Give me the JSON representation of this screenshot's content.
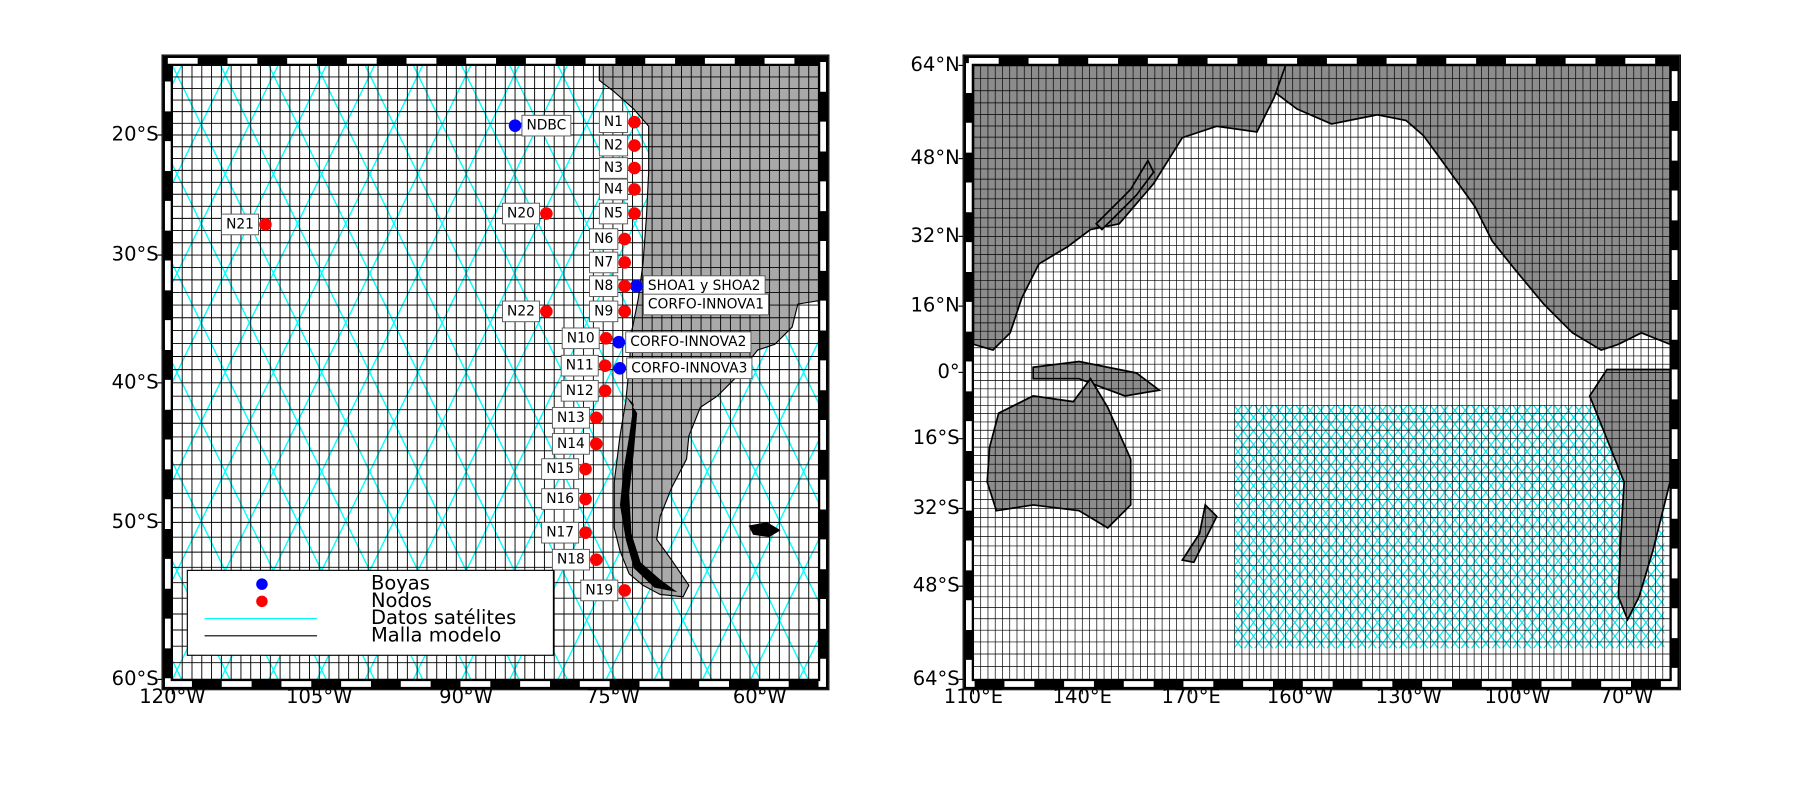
{
  "chart_data": [
    {
      "type": "map",
      "xlim": [
        -120,
        -54
      ],
      "ylim": [
        -60,
        -14
      ],
      "xticks": [
        {
          "value": -120,
          "label": "120°W"
        },
        {
          "value": -105,
          "label": "105°W"
        },
        {
          "value": -90,
          "label": "90°W"
        },
        {
          "value": -75,
          "label": "75°W"
        },
        {
          "value": -60,
          "label": "60°W"
        }
      ],
      "yticks": [
        {
          "value": -60,
          "label": "60°S"
        },
        {
          "value": -50,
          "label": "50°S"
        },
        {
          "value": -40,
          "label": "40°S"
        },
        {
          "value": -30,
          "label": "30°S"
        },
        {
          "value": -20,
          "label": "20°S"
        }
      ],
      "grid": true,
      "legend": "lower left",
      "series": [
        {
          "name": "Boyas",
          "color": "#0000ff",
          "labels": [
            "NDBC",
            "SHOA1 y SHOA2",
            "CORFO-INNOVA1",
            "CORFO-INNOVA2",
            "CORFO-INNOVA3"
          ],
          "x": [
            -85.0,
            -72.6,
            -72.6,
            -74.4,
            -74.3
          ],
          "values": [
            -19.2,
            -32.5,
            -32.5,
            -36.9,
            -38.9
          ]
        },
        {
          "name": "Nodos",
          "color": "#ff0000",
          "labels": [
            "N1",
            "N2",
            "N3",
            "N4",
            "N5",
            "N6",
            "N7",
            "N8",
            "N9",
            "N10",
            "N11",
            "N12",
            "N13",
            "N14",
            "N15",
            "N16",
            "N17",
            "N18",
            "N19",
            "N20",
            "N21",
            "N22"
          ],
          "x": [
            -72.8,
            -72.8,
            -72.8,
            -72.8,
            -72.8,
            -73.8,
            -73.8,
            -73.8,
            -73.8,
            -75.7,
            -75.8,
            -75.8,
            -76.7,
            -76.7,
            -77.8,
            -77.8,
            -77.8,
            -76.7,
            -73.8,
            -81.8,
            -110.5,
            -81.8
          ],
          "values": [
            -18.9,
            -20.9,
            -22.8,
            -24.6,
            -26.6,
            -28.7,
            -30.6,
            -32.5,
            -34.5,
            -36.6,
            -38.7,
            -40.6,
            -42.6,
            -44.5,
            -46.3,
            -48.4,
            -50.7,
            -52.5,
            -54.5,
            -26.6,
            -27.5,
            -34.5
          ]
        }
      ],
      "lines": [
        {
          "name": "Datos satélites",
          "color": "#00ffff"
        },
        {
          "name": "Malla modelo",
          "color": "#000000"
        }
      ]
    },
    {
      "type": "map",
      "xlim": [
        110,
        302
      ],
      "ylim": [
        -64,
        64
      ],
      "xticks": [
        {
          "value": 110,
          "label": "110°E"
        },
        {
          "value": 140,
          "label": "140°E"
        },
        {
          "value": 170,
          "label": "170°E"
        },
        {
          "value": 200,
          "label": "160°W"
        },
        {
          "value": 230,
          "label": "130°W"
        },
        {
          "value": 260,
          "label": "100°W"
        },
        {
          "value": 290,
          "label": "70°W"
        }
      ],
      "yticks": [
        {
          "value": -64,
          "label": "64°S"
        },
        {
          "value": -48,
          "label": "48°S"
        },
        {
          "value": -32,
          "label": "32°S"
        },
        {
          "value": -16,
          "label": "16°S"
        },
        {
          "value": 0,
          "label": "0°"
        },
        {
          "value": 16,
          "label": "16°N"
        },
        {
          "value": 32,
          "label": "32°N"
        },
        {
          "value": 48,
          "label": "48°N"
        },
        {
          "value": 64,
          "label": "64°N"
        }
      ],
      "grid": true
    }
  ]
}
